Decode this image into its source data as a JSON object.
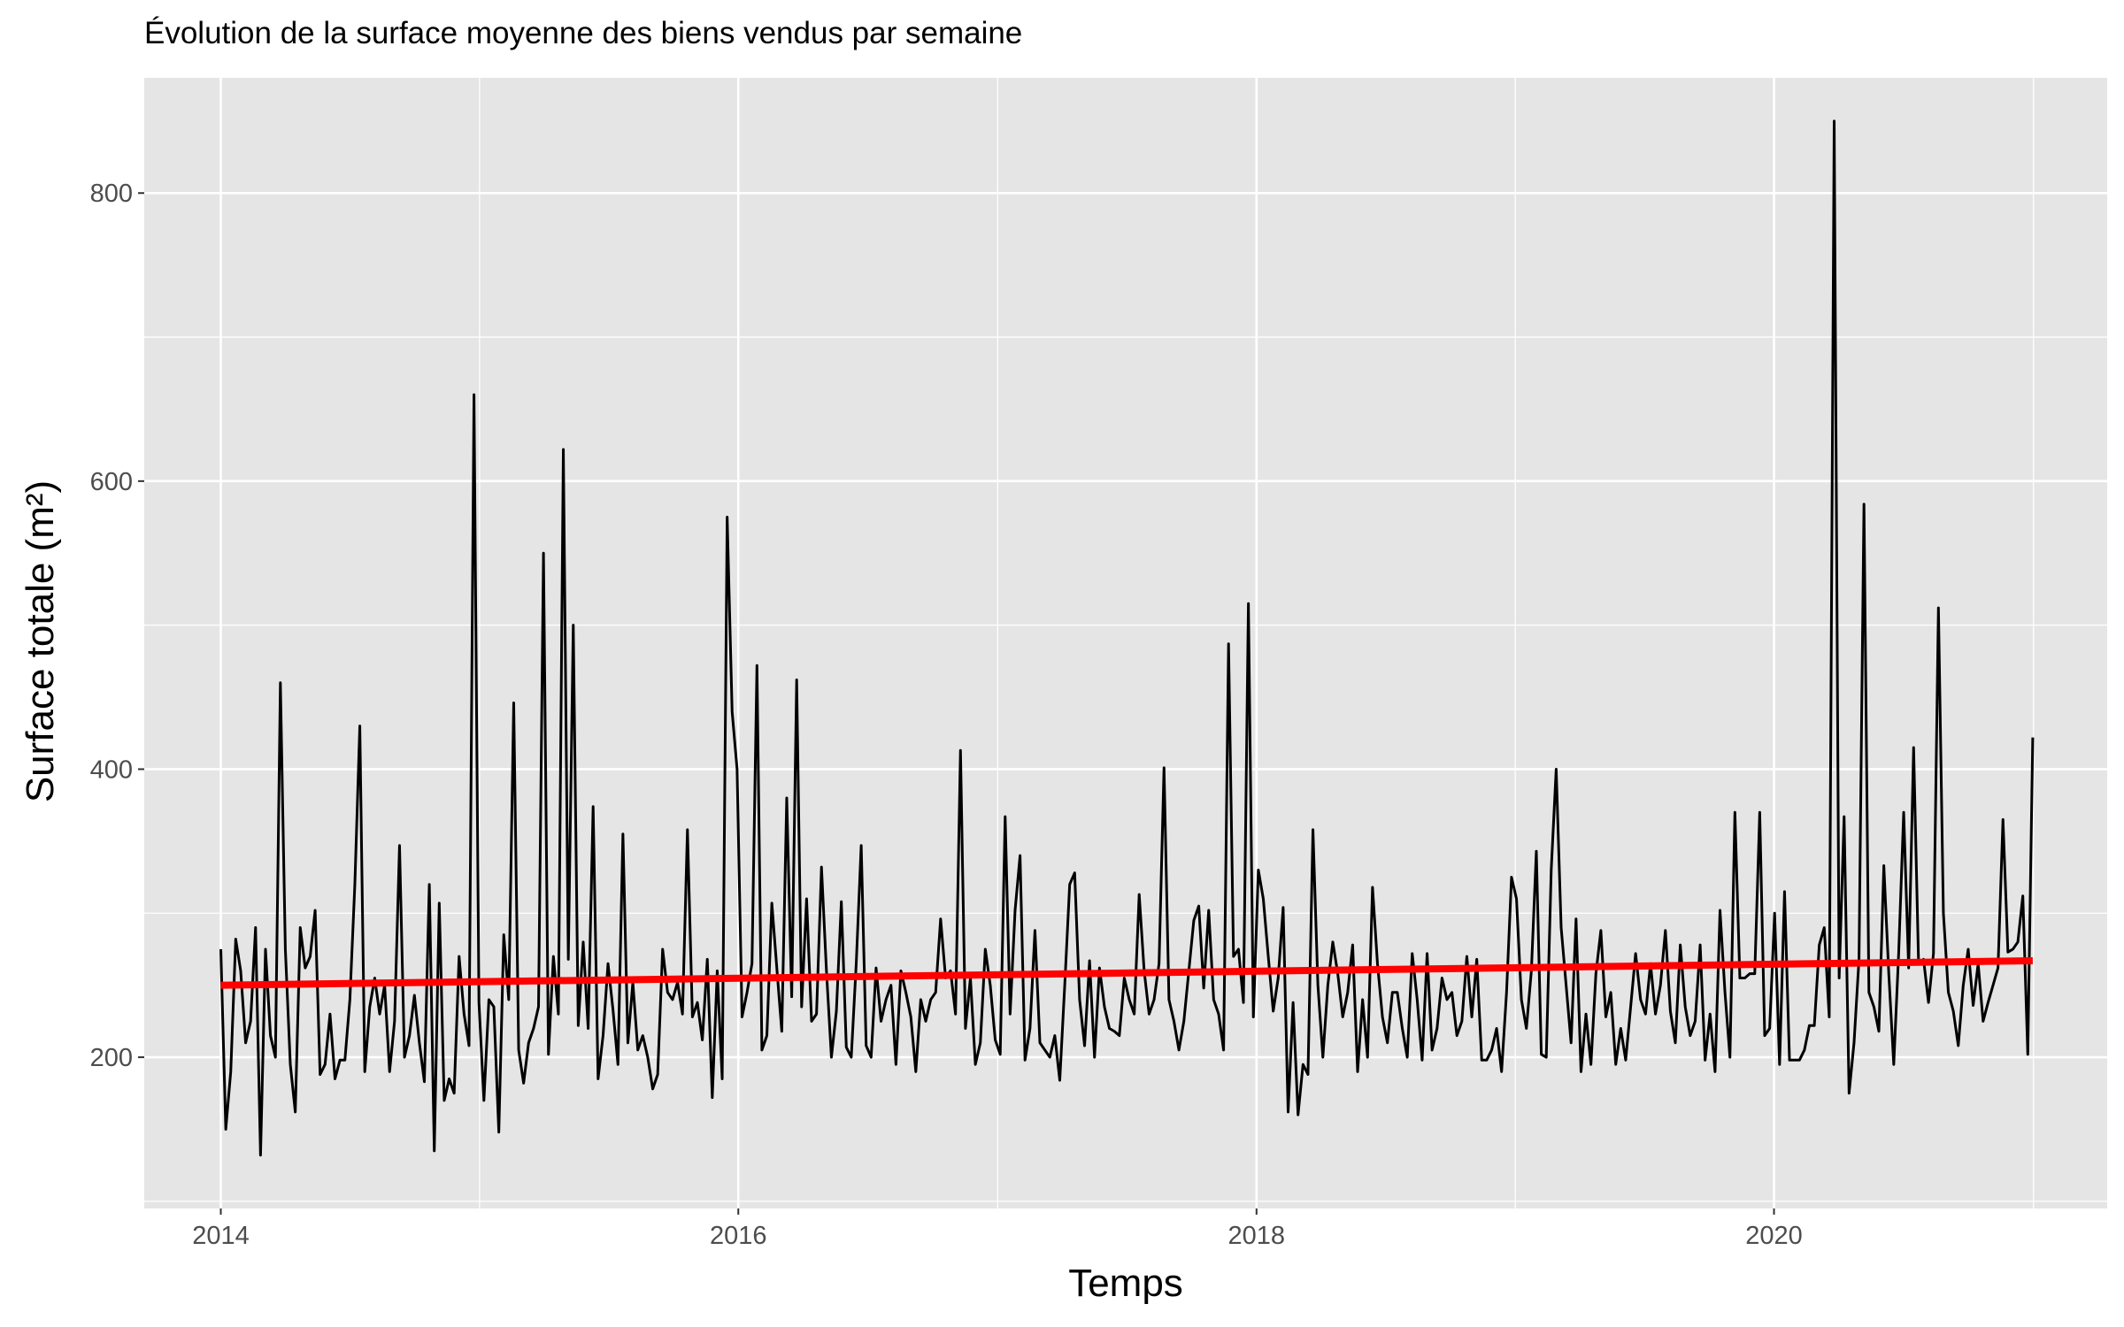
{
  "chart_data": {
    "type": "line",
    "title": "Évolution de la surface moyenne des biens vendus par semaine",
    "xlabel": "Temps",
    "ylabel": "Surface totale (m²)",
    "x_start": "2014-01-01",
    "x_end": "2020-12-31",
    "xlim": [
      "2013-09-15",
      "2021-04-15"
    ],
    "ylim": [
      95,
      880
    ],
    "x_ticks": [
      "2014",
      "2016",
      "2018",
      "2020"
    ],
    "y_ticks": [
      200,
      400,
      600,
      800
    ],
    "grid": true,
    "background": "#e5e5e5",
    "series": [
      {
        "color": "#000000",
        "values": [
          275,
          150,
          190,
          282,
          260,
          210,
          225,
          290,
          132,
          275,
          215,
          200,
          460,
          275,
          195,
          162,
          290,
          262,
          270,
          302,
          188,
          195,
          230,
          185,
          198,
          198,
          240,
          320,
          430,
          190,
          235,
          255,
          230,
          250,
          190,
          225,
          347,
          200,
          215,
          243,
          210,
          183,
          320,
          135,
          307,
          170,
          185,
          175,
          270,
          230,
          208,
          660,
          238,
          170,
          240,
          235,
          148,
          285,
          240,
          446,
          205,
          182,
          210,
          220,
          235,
          550,
          202,
          270,
          230,
          622,
          268,
          500,
          222,
          280,
          220,
          374,
          185,
          215,
          265,
          233,
          195,
          355,
          210,
          252,
          205,
          215,
          200,
          178,
          188,
          275,
          245,
          240,
          252,
          230,
          358,
          228,
          238,
          212,
          268,
          172,
          260,
          185,
          575,
          440,
          400,
          228,
          245,
          265,
          472,
          205,
          215,
          307,
          262,
          218,
          380,
          242,
          462,
          235,
          310,
          225,
          230,
          332,
          260,
          200,
          232,
          308,
          207,
          200,
          265,
          347,
          208,
          200,
          262,
          225,
          240,
          250,
          195,
          260,
          245,
          228,
          190,
          240,
          225,
          240,
          245,
          296,
          255,
          260,
          230,
          413,
          220,
          255,
          195,
          210,
          275,
          250,
          212,
          202,
          367,
          230,
          302,
          340,
          198,
          220,
          288,
          210,
          205,
          200,
          215,
          184,
          250,
          320,
          328,
          240,
          208,
          267,
          200,
          262,
          235,
          220,
          218,
          215,
          255,
          240,
          230,
          313,
          260,
          230,
          240,
          265,
          401,
          240,
          225,
          205,
          225,
          260,
          295,
          305,
          248,
          302,
          240,
          230,
          205,
          487,
          270,
          275,
          238,
          515,
          228,
          330,
          310,
          270,
          232,
          255,
          304,
          162,
          238,
          160,
          195,
          188,
          358,
          250,
          200,
          250,
          280,
          258,
          228,
          245,
          278,
          190,
          240,
          200,
          318,
          265,
          228,
          210,
          245,
          245,
          220,
          200,
          272,
          240,
          198,
          272,
          205,
          220,
          255,
          240,
          245,
          215,
          225,
          270,
          228,
          268,
          198,
          198,
          205,
          220,
          190,
          245,
          325,
          310,
          240,
          220,
          260,
          343,
          202,
          200,
          330,
          400,
          290,
          250,
          210,
          296,
          190,
          230,
          195,
          258,
          288,
          228,
          245,
          195,
          220,
          198,
          235,
          272,
          240,
          230,
          265,
          230,
          250,
          288,
          232,
          210,
          278,
          235,
          215,
          225,
          278,
          198,
          230,
          190,
          302,
          245,
          200,
          370,
          255,
          255,
          258,
          258,
          370,
          215,
          220,
          300,
          195,
          315,
          198,
          198,
          198,
          205,
          222,
          222,
          278,
          290,
          228,
          850,
          255,
          367,
          175,
          210,
          268,
          584,
          245,
          235,
          218,
          333,
          258,
          195,
          273,
          370,
          262,
          415,
          265,
          268,
          238,
          272,
          512,
          300,
          245,
          232,
          208,
          250,
          275,
          236,
          265,
          225,
          238,
          250,
          262,
          365,
          273,
          275,
          280,
          312,
          202,
          422
        ]
      },
      {
        "color": "#ff0000",
        "values": [
          250,
          267
        ]
      }
    ]
  }
}
